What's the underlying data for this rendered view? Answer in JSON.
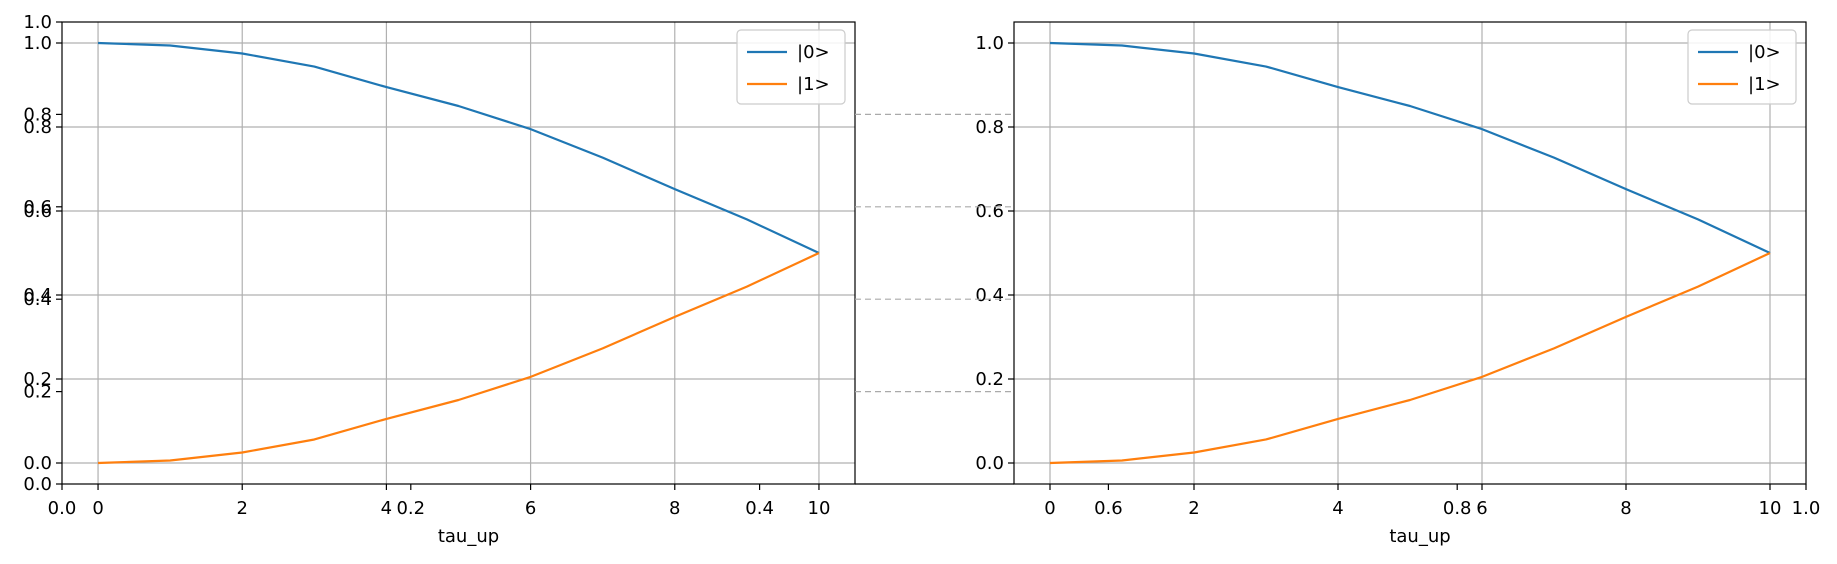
{
  "chart_data": {
    "type": "line",
    "figure_background": "#ffffff",
    "grid": true,
    "gridline_color": "#b0b0b0",
    "colors": {
      "series_0": "#1f77b4",
      "series_1": "#ff7f0e",
      "connector": "#aaaaaa"
    },
    "overlay_axes": {
      "xlim": [
        0.0,
        1.0
      ],
      "ylim": [
        0.0,
        1.0
      ],
      "xticks": [
        "0.0",
        "1.0"
      ],
      "yticks": [
        "0.0",
        "1.0"
      ]
    },
    "panels": [
      {
        "x": [
          0,
          1,
          2,
          3,
          4,
          5,
          6,
          7,
          8,
          9,
          10
        ],
        "xlim": [
          -0.5,
          10.5
        ],
        "ylim": [
          -0.05,
          1.05
        ],
        "xticks": [
          "0",
          "2",
          "4",
          "6",
          "8",
          "10"
        ],
        "yticks": [
          "0.0",
          "0.2",
          "0.4",
          "0.6",
          "0.8",
          "1.0"
        ],
        "xlabel": "tau_up",
        "legend_position": "upper-right",
        "series": [
          {
            "name": "|0>",
            "values": [
              1.0,
              0.994,
              0.975,
              0.944,
              0.895,
              0.85,
              0.795,
              0.727,
              0.652,
              0.58,
              0.5
            ]
          },
          {
            "name": "|1>",
            "values": [
              0.0,
              0.006,
              0.025,
              0.056,
              0.105,
              0.15,
              0.205,
              0.273,
              0.348,
              0.42,
              0.5
            ]
          }
        ],
        "inset_xticks": [
          {
            "value": 0.2,
            "label": "0.2"
          },
          {
            "value": 0.4,
            "label": "0.4"
          }
        ],
        "inset_yticks": [
          0.2,
          0.4,
          0.6,
          0.8
        ]
      },
      {
        "x": [
          0,
          1,
          2,
          3,
          4,
          5,
          6,
          7,
          8,
          9,
          10
        ],
        "xlim": [
          -0.5,
          10.5
        ],
        "ylim": [
          -0.05,
          1.05
        ],
        "xticks": [
          "0",
          "2",
          "4",
          "6",
          "8",
          "10"
        ],
        "yticks": [
          "0.0",
          "0.2",
          "0.4",
          "0.6",
          "0.8",
          "1.0"
        ],
        "xlabel": "tau_up",
        "legend_position": "upper-right",
        "series": [
          {
            "name": "|0>",
            "values": [
              1.0,
              0.994,
              0.975,
              0.944,
              0.895,
              0.85,
              0.795,
              0.727,
              0.652,
              0.58,
              0.5
            ]
          },
          {
            "name": "|1>",
            "values": [
              0.0,
              0.006,
              0.025,
              0.056,
              0.105,
              0.15,
              0.205,
              0.273,
              0.348,
              0.42,
              0.5
            ]
          }
        ],
        "inset_xticks": [
          {
            "value": 0.6,
            "label": "0.6"
          },
          {
            "value": 0.8,
            "label": "0.8"
          }
        ]
      }
    ]
  }
}
